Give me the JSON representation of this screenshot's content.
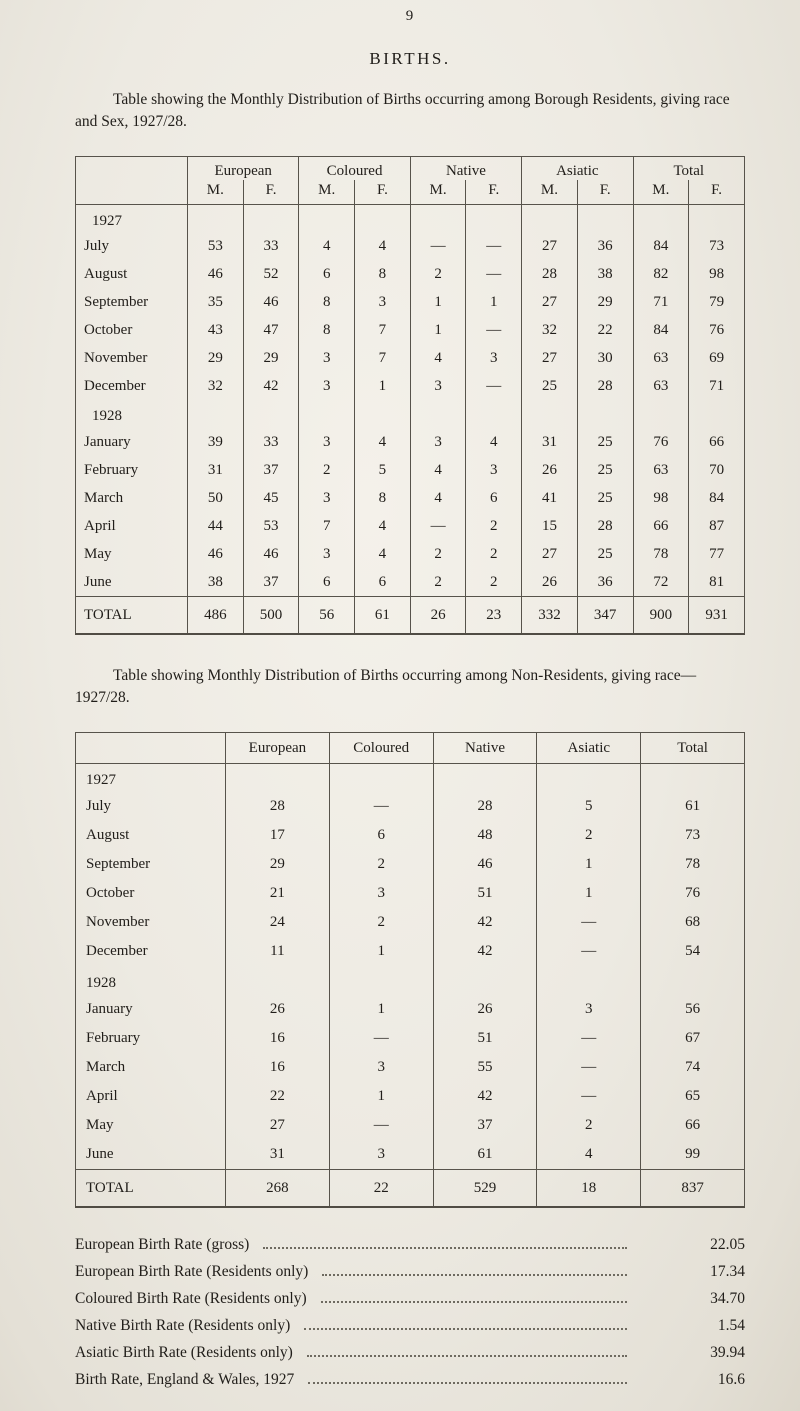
{
  "page": {
    "number": "9",
    "title": "BIRTHS."
  },
  "residents_table": {
    "caption": "Table showing the Monthly Distribution of Births occurring among Borough Residents, giving race and Sex, 1927/28.",
    "groups": [
      "European",
      "Coloured",
      "Native",
      "Asiatic",
      "Total"
    ],
    "sub_columns": [
      "M.",
      "F."
    ],
    "sections": [
      {
        "year": "1927",
        "rows": [
          {
            "month": "July",
            "cells": [
              "53",
              "33",
              "4",
              "4",
              "—",
              "—",
              "27",
              "36",
              "84",
              "73"
            ]
          },
          {
            "month": "August",
            "cells": [
              "46",
              "52",
              "6",
              "8",
              "2",
              "—",
              "28",
              "38",
              "82",
              "98"
            ]
          },
          {
            "month": "September",
            "cells": [
              "35",
              "46",
              "8",
              "3",
              "1",
              "1",
              "27",
              "29",
              "71",
              "79"
            ]
          },
          {
            "month": "October",
            "cells": [
              "43",
              "47",
              "8",
              "7",
              "1",
              "—",
              "32",
              "22",
              "84",
              "76"
            ]
          },
          {
            "month": "November",
            "cells": [
              "29",
              "29",
              "3",
              "7",
              "4",
              "3",
              "27",
              "30",
              "63",
              "69"
            ]
          },
          {
            "month": "December",
            "cells": [
              "32",
              "42",
              "3",
              "1",
              "3",
              "—",
              "25",
              "28",
              "63",
              "71"
            ]
          }
        ]
      },
      {
        "year": "1928",
        "rows": [
          {
            "month": "January",
            "cells": [
              "39",
              "33",
              "3",
              "4",
              "3",
              "4",
              "31",
              "25",
              "76",
              "66"
            ]
          },
          {
            "month": "February",
            "cells": [
              "31",
              "37",
              "2",
              "5",
              "4",
              "3",
              "26",
              "25",
              "63",
              "70"
            ]
          },
          {
            "month": "March",
            "cells": [
              "50",
              "45",
              "3",
              "8",
              "4",
              "6",
              "41",
              "25",
              "98",
              "84"
            ]
          },
          {
            "month": "April",
            "cells": [
              "44",
              "53",
              "7",
              "4",
              "—",
              "2",
              "15",
              "28",
              "66",
              "87"
            ]
          },
          {
            "month": "May",
            "cells": [
              "46",
              "46",
              "3",
              "4",
              "2",
              "2",
              "27",
              "25",
              "78",
              "77"
            ]
          },
          {
            "month": "June",
            "cells": [
              "38",
              "37",
              "6",
              "6",
              "2",
              "2",
              "26",
              "36",
              "72",
              "81"
            ]
          }
        ]
      }
    ],
    "total": {
      "label": "TOTAL",
      "cells": [
        "486",
        "500",
        "56",
        "61",
        "26",
        "23",
        "332",
        "347",
        "900",
        "931"
      ]
    }
  },
  "non_residents_table": {
    "caption": "Table showing Monthly Distribution of Births occurring among Non-Residents, giving race—1927/28.",
    "columns": [
      "European",
      "Coloured",
      "Native",
      "Asiatic",
      "Total"
    ],
    "sections": [
      {
        "year": "1927",
        "rows": [
          {
            "month": "July",
            "cells": [
              "28",
              "—",
              "28",
              "5",
              "61"
            ]
          },
          {
            "month": "August",
            "cells": [
              "17",
              "6",
              "48",
              "2",
              "73"
            ]
          },
          {
            "month": "September",
            "cells": [
              "29",
              "2",
              "46",
              "1",
              "78"
            ]
          },
          {
            "month": "October",
            "cells": [
              "21",
              "3",
              "51",
              "1",
              "76"
            ]
          },
          {
            "month": "November",
            "cells": [
              "24",
              "2",
              "42",
              "—",
              "68"
            ]
          },
          {
            "month": "December",
            "cells": [
              "11",
              "1",
              "42",
              "—",
              "54"
            ]
          }
        ]
      },
      {
        "year": "1928",
        "rows": [
          {
            "month": "January",
            "cells": [
              "26",
              "1",
              "26",
              "3",
              "56"
            ]
          },
          {
            "month": "February",
            "cells": [
              "16",
              "—",
              "51",
              "—",
              "67"
            ]
          },
          {
            "month": "March",
            "cells": [
              "16",
              "3",
              "55",
              "—",
              "74"
            ]
          },
          {
            "month": "April",
            "cells": [
              "22",
              "1",
              "42",
              "—",
              "65"
            ]
          },
          {
            "month": "May",
            "cells": [
              "27",
              "—",
              "37",
              "2",
              "66"
            ]
          },
          {
            "month": "June",
            "cells": [
              "31",
              "3",
              "61",
              "4",
              "99"
            ]
          }
        ]
      }
    ],
    "total": {
      "label": "TOTAL",
      "cells": [
        "268",
        "22",
        "529",
        "18",
        "837"
      ]
    }
  },
  "birth_rates": [
    {
      "label": "European Birth Rate (gross)",
      "value": "22.05"
    },
    {
      "label": "European Birth Rate (Residents only)",
      "value": "17.34"
    },
    {
      "label": "Coloured Birth Rate (Residents only)",
      "value": "34.70"
    },
    {
      "label": "Native Birth Rate (Residents only)",
      "value": "1.54"
    },
    {
      "label": "Asiatic Birth Rate (Residents only)",
      "value": "39.94"
    },
    {
      "label": "Birth Rate, England & Wales, 1927",
      "value": "16.6"
    }
  ]
}
